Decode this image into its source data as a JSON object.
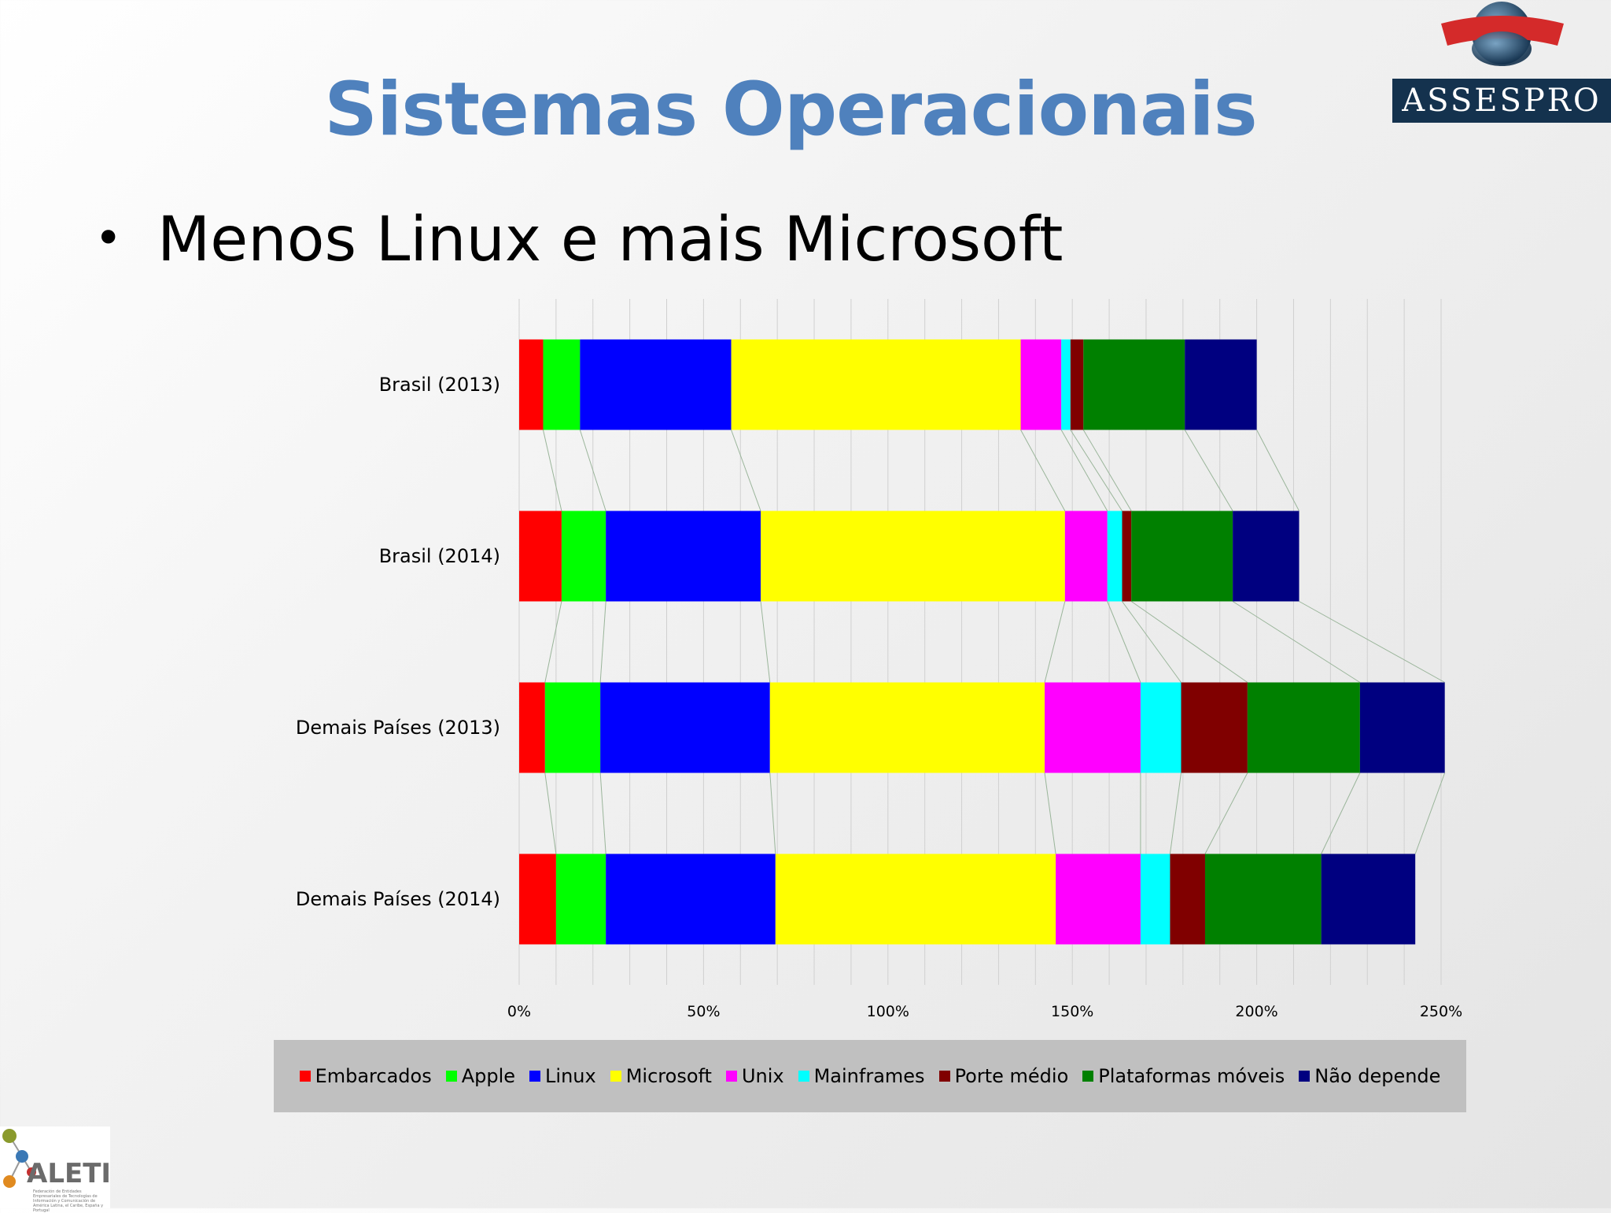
{
  "slide": {
    "title": "Sistemas Operacionais",
    "bullet": "Menos Linux e mais Microsoft",
    "logo_assespro": "ASSESPRO",
    "logo_aleti": "ALETI",
    "logo_aleti_sub": "Federación de Entidades Empresariales de Tecnologías de Información y Comunicación de América Latina, el Caribe, España y Portugal"
  },
  "chart_data": {
    "type": "bar",
    "orientation": "horizontal",
    "stacked": true,
    "categories": [
      "Brasil (2013)",
      "Brasil (2014)",
      "Demais Países (2013)",
      "Demais Países (2014)"
    ],
    "series": [
      {
        "name": "Embarcados",
        "color": "#ff0000",
        "values": [
          6.5,
          11.5,
          7,
          10
        ]
      },
      {
        "name": "Apple",
        "color": "#00ff00",
        "values": [
          10,
          12,
          15,
          13.5
        ]
      },
      {
        "name": "Linux",
        "color": "#0000ff",
        "values": [
          41,
          42,
          46,
          46
        ]
      },
      {
        "name": "Microsoft",
        "color": "#ffff00",
        "values": [
          78.5,
          82.5,
          74.5,
          76
        ]
      },
      {
        "name": "Unix",
        "color": "#ff00ff",
        "values": [
          11,
          11.5,
          26,
          23
        ]
      },
      {
        "name": "Mainframes",
        "color": "#00ffff",
        "values": [
          2.5,
          4,
          11,
          8
        ]
      },
      {
        "name": "Porte médio",
        "color": "#800000",
        "values": [
          3.5,
          2.5,
          18,
          9.5
        ]
      },
      {
        "name": "Plataformas móveis",
        "color": "#008000",
        "values": [
          27.5,
          27.5,
          30.5,
          31.5
        ]
      },
      {
        "name": "Não depende",
        "color": "#000080",
        "values": [
          19.5,
          18,
          23,
          25.5
        ]
      }
    ],
    "xlim": [
      0,
      250
    ],
    "xticks": [
      "0%",
      "50%",
      "100%",
      "150%",
      "200%",
      "250%"
    ],
    "grid": true,
    "legend_position": "bottom",
    "series_lines": true
  }
}
